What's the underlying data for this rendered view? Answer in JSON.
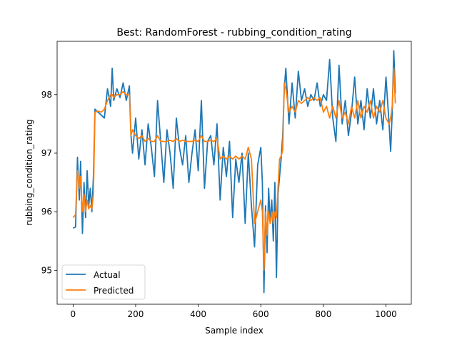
{
  "chart_data": {
    "type": "line",
    "title": "Best: RandomForest - rubbing_condition_rating",
    "xlabel": "Sample index",
    "ylabel": "rubbing_condition_rating",
    "xlim": [
      -51,
      1081
    ],
    "ylim": [
      94.42,
      98.91
    ],
    "x_ticks": [
      0,
      200,
      400,
      600,
      800,
      1000
    ],
    "x_tick_labels": [
      "0",
      "200",
      "400",
      "600",
      "800",
      "1000"
    ],
    "y_ticks": [
      95,
      96,
      97,
      98
    ],
    "y_tick_labels": [
      "95",
      "96",
      "97",
      "98"
    ],
    "grid": false,
    "legend_position": "lower-left",
    "series": [
      {
        "name": "Actual",
        "color": "#1f77b4",
        "x": [
          0,
          8,
          14,
          20,
          24,
          30,
          35,
          40,
          45,
          50,
          55,
          60,
          65,
          70,
          80,
          90,
          100,
          110,
          120,
          125,
          130,
          140,
          150,
          160,
          170,
          180,
          185,
          190,
          200,
          210,
          220,
          230,
          240,
          250,
          260,
          270,
          280,
          290,
          300,
          310,
          320,
          330,
          340,
          350,
          360,
          370,
          380,
          390,
          400,
          410,
          420,
          430,
          440,
          450,
          460,
          470,
          480,
          490,
          500,
          510,
          520,
          530,
          540,
          550,
          560,
          570,
          580,
          590,
          600,
          605,
          610,
          615,
          620,
          625,
          630,
          635,
          640,
          645,
          650,
          655,
          660,
          665,
          670,
          675,
          680,
          690,
          700,
          710,
          720,
          730,
          740,
          750,
          760,
          770,
          780,
          790,
          800,
          810,
          820,
          830,
          840,
          850,
          860,
          870,
          880,
          890,
          900,
          910,
          920,
          930,
          940,
          950,
          960,
          970,
          980,
          990,
          1000,
          1010,
          1015,
          1020,
          1025,
          1030
        ],
        "values": [
          95.72,
          95.74,
          96.93,
          96.2,
          96.86,
          95.63,
          96.5,
          95.9,
          96.7,
          96.1,
          96.4,
          96.0,
          96.6,
          97.75,
          97.7,
          97.65,
          97.6,
          98.1,
          97.8,
          98.45,
          97.9,
          98.1,
          97.95,
          98.2,
          97.9,
          98.15,
          97.3,
          97.0,
          97.6,
          96.9,
          97.4,
          96.8,
          97.5,
          97.1,
          96.6,
          97.9,
          97.2,
          96.5,
          97.4,
          97.0,
          96.4,
          97.6,
          97.1,
          96.8,
          97.3,
          96.5,
          97.0,
          97.4,
          96.7,
          97.9,
          96.4,
          97.2,
          97.3,
          96.8,
          97.5,
          96.2,
          97.1,
          96.6,
          97.2,
          95.9,
          96.9,
          96.5,
          97.0,
          95.8,
          97.0,
          96.1,
          95.4,
          96.8,
          97.1,
          96.5,
          94.62,
          96.1,
          95.3,
          96.4,
          95.8,
          96.2,
          95.5,
          96.5,
          94.88,
          96.3,
          96.6,
          96.9,
          97.3,
          98.1,
          98.45,
          97.5,
          98.2,
          97.6,
          98.4,
          97.9,
          98.1,
          97.8,
          98.0,
          97.9,
          98.2,
          97.8,
          98.0,
          97.9,
          98.6,
          97.6,
          97.2,
          98.5,
          97.5,
          97.9,
          97.3,
          97.7,
          98.3,
          97.5,
          97.9,
          97.4,
          98.1,
          97.6,
          98.1,
          97.5,
          97.9,
          97.4,
          98.3,
          97.5,
          97.03,
          97.7,
          98.75,
          98.02
        ]
      },
      {
        "name": "Predicted",
        "color": "#ff7f0e",
        "x": [
          0,
          8,
          14,
          20,
          24,
          30,
          35,
          40,
          45,
          50,
          55,
          60,
          65,
          70,
          80,
          90,
          100,
          110,
          120,
          125,
          130,
          140,
          150,
          160,
          170,
          180,
          185,
          190,
          200,
          210,
          220,
          230,
          240,
          250,
          260,
          270,
          280,
          290,
          300,
          310,
          320,
          330,
          340,
          350,
          360,
          370,
          380,
          390,
          400,
          410,
          420,
          430,
          440,
          450,
          460,
          470,
          480,
          490,
          500,
          510,
          520,
          530,
          540,
          550,
          560,
          570,
          580,
          590,
          600,
          605,
          610,
          615,
          620,
          625,
          630,
          635,
          640,
          645,
          650,
          655,
          660,
          665,
          670,
          675,
          680,
          690,
          700,
          710,
          720,
          730,
          740,
          750,
          760,
          770,
          780,
          790,
          800,
          810,
          820,
          830,
          840,
          850,
          860,
          870,
          880,
          890,
          900,
          910,
          920,
          930,
          940,
          950,
          960,
          970,
          980,
          990,
          1000,
          1010,
          1015,
          1020,
          1025,
          1030
        ],
        "values": [
          95.9,
          95.95,
          96.7,
          96.4,
          96.6,
          96.0,
          96.3,
          96.0,
          96.2,
          96.05,
          96.1,
          96.05,
          96.3,
          97.7,
          97.72,
          97.7,
          97.75,
          97.9,
          98.0,
          98.0,
          97.95,
          98.0,
          98.0,
          98.05,
          98.0,
          98.0,
          97.3,
          97.4,
          97.3,
          97.25,
          97.3,
          97.2,
          97.25,
          97.2,
          97.2,
          97.3,
          97.2,
          97.2,
          97.2,
          97.22,
          97.2,
          97.25,
          97.2,
          97.22,
          97.2,
          97.2,
          97.2,
          97.22,
          97.2,
          97.3,
          97.2,
          97.2,
          97.22,
          97.2,
          97.25,
          96.9,
          96.95,
          96.9,
          96.95,
          96.9,
          96.95,
          96.9,
          96.95,
          96.9,
          97.1,
          96.9,
          95.8,
          96.0,
          96.2,
          96.0,
          95.0,
          96.0,
          95.6,
          96.0,
          95.8,
          96.0,
          95.8,
          96.0,
          95.9,
          96.4,
          96.9,
          96.95,
          97.05,
          98.2,
          98.1,
          97.7,
          97.8,
          97.7,
          97.9,
          97.85,
          97.9,
          97.95,
          97.9,
          97.95,
          97.9,
          97.95,
          97.7,
          97.8,
          97.6,
          97.8,
          97.6,
          97.9,
          97.6,
          97.7,
          97.5,
          97.8,
          97.6,
          97.9,
          97.6,
          97.8,
          97.7,
          97.9,
          97.6,
          97.8,
          97.7,
          97.9,
          97.6,
          97.5,
          97.6,
          97.8,
          98.45,
          97.85
        ]
      }
    ]
  }
}
